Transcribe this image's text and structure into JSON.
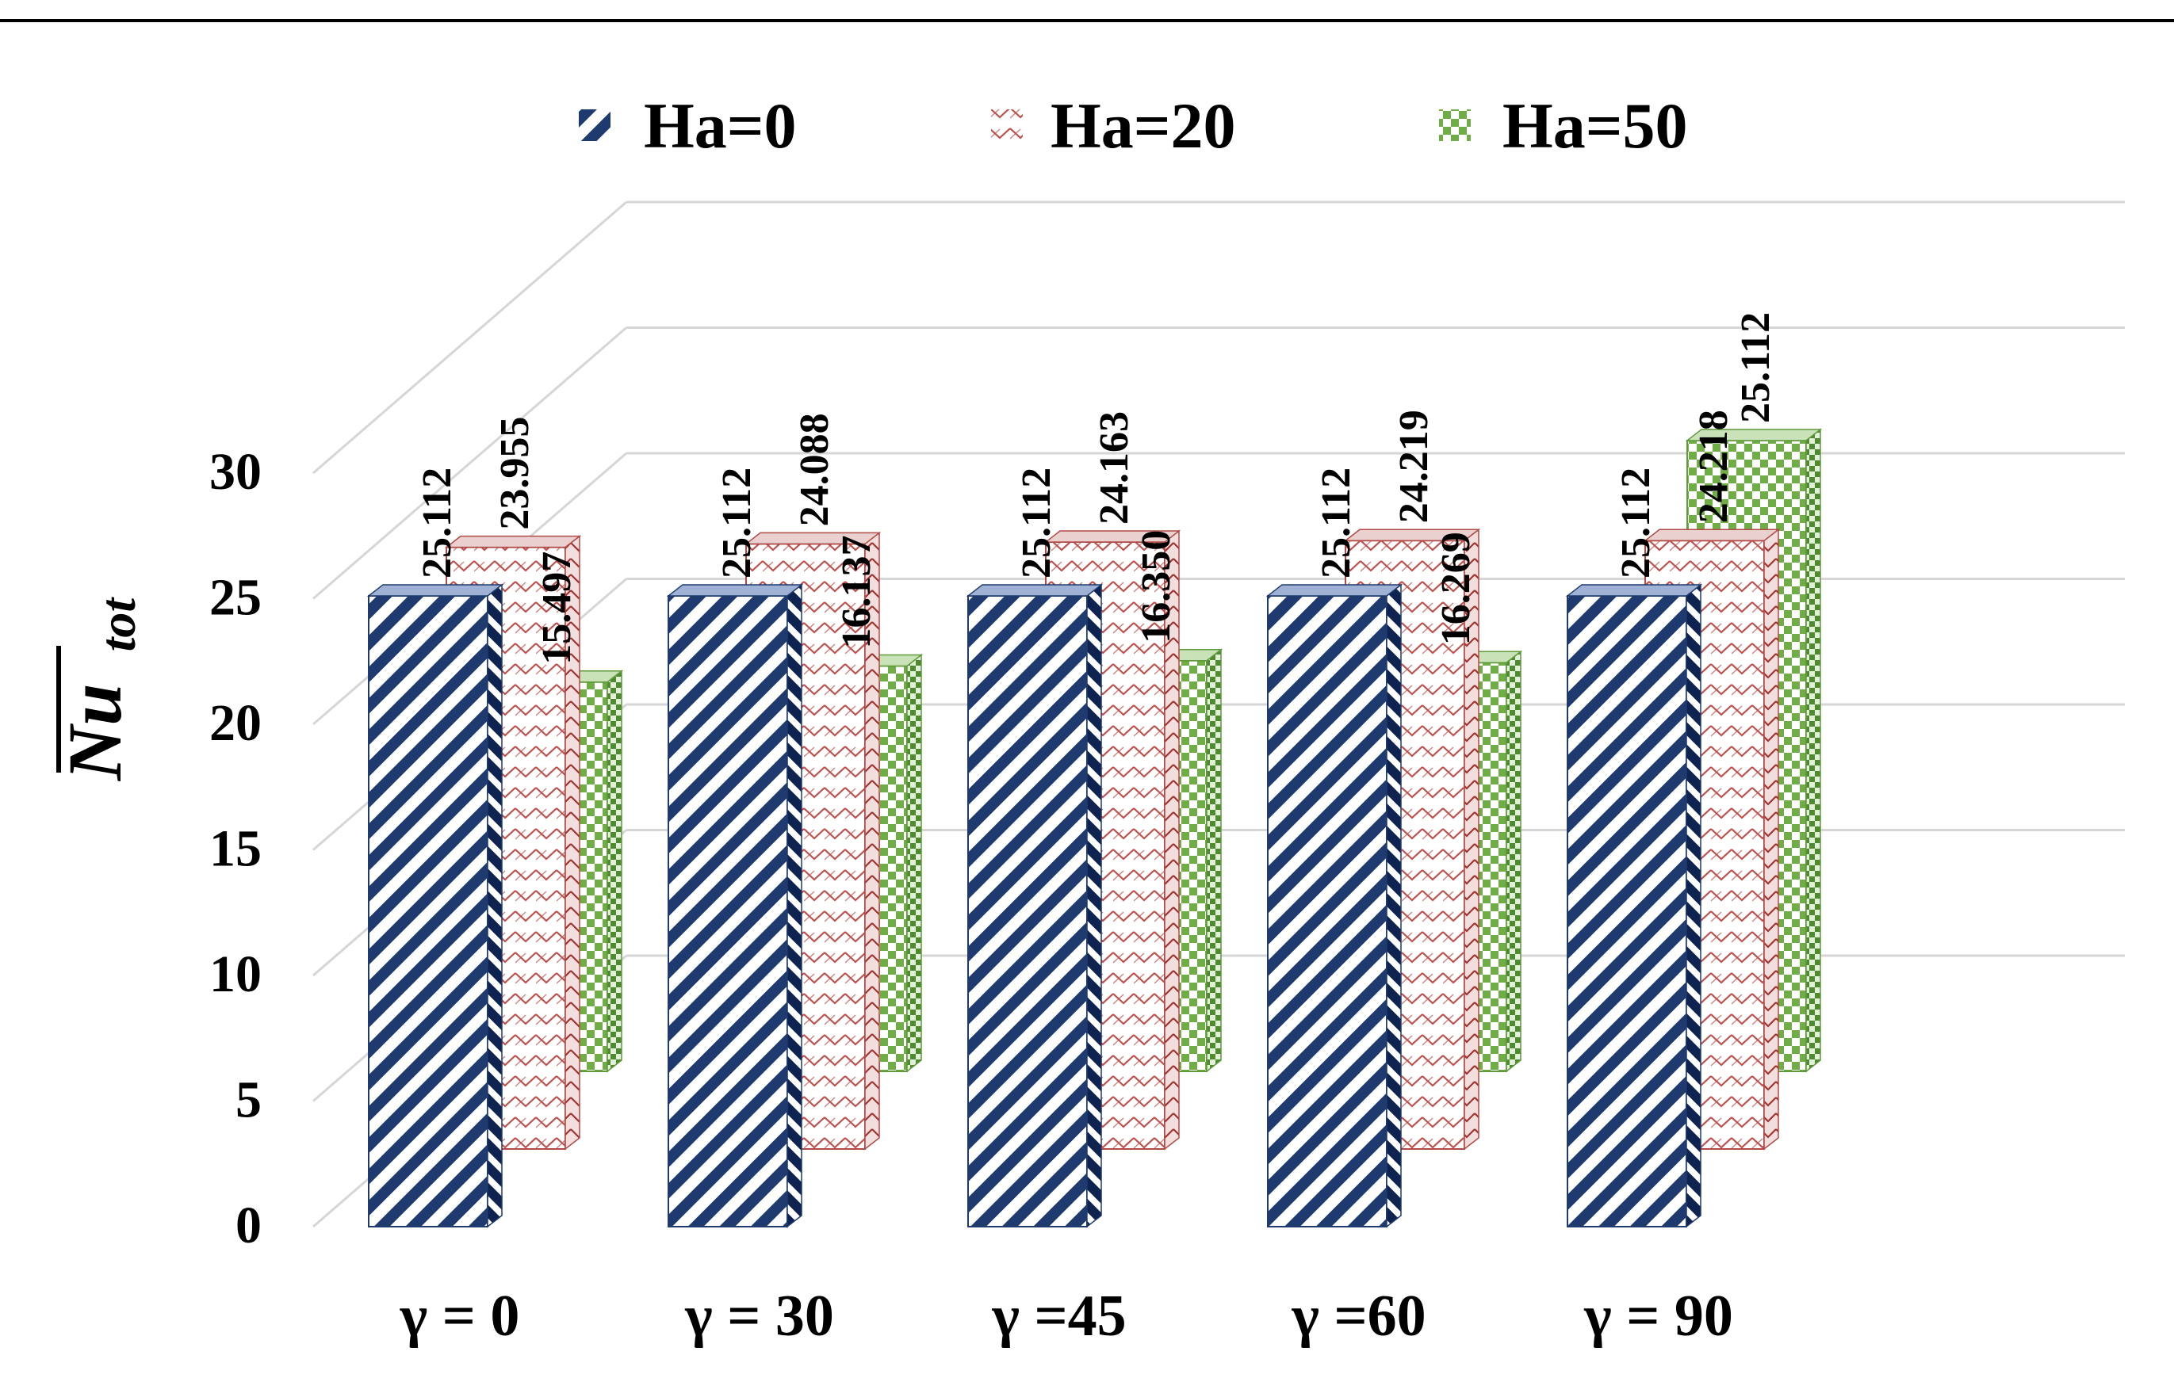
{
  "chart_data": {
    "type": "bar",
    "title": "",
    "xlabel": "",
    "ylabel": "Nu",
    "ylabel_subscript": "tot",
    "ylim": [
      0,
      30
    ],
    "yticks": [
      0,
      5,
      10,
      15,
      20,
      25,
      30
    ],
    "categories": [
      "γ = 0",
      "γ = 30",
      "γ =45",
      "γ =60",
      "γ = 90"
    ],
    "series": [
      {
        "name": "Ha=0",
        "color": "#1f3a6e",
        "pattern": "diagonal-stripes",
        "values": [
          25.112,
          25.112,
          25.112,
          25.112,
          25.112
        ],
        "labels": [
          "25.112",
          "25.112",
          "25.112",
          "25.112",
          "25.112"
        ]
      },
      {
        "name": "Ha=20",
        "color": "#c0504d",
        "pattern": "zigzag",
        "values": [
          23.955,
          24.088,
          24.163,
          24.219,
          24.218
        ],
        "labels": [
          "23.955",
          "24.088",
          "24.163",
          "24.219",
          "24.218"
        ]
      },
      {
        "name": "Ha=50",
        "color": "#70ad47",
        "pattern": "checkerboard",
        "values": [
          15.497,
          16.137,
          16.35,
          16.269,
          25.112
        ],
        "labels": [
          "15.497",
          "16.137",
          "16.350",
          "16.269",
          "25.112"
        ]
      }
    ],
    "legend_position": "top",
    "grid": true
  }
}
